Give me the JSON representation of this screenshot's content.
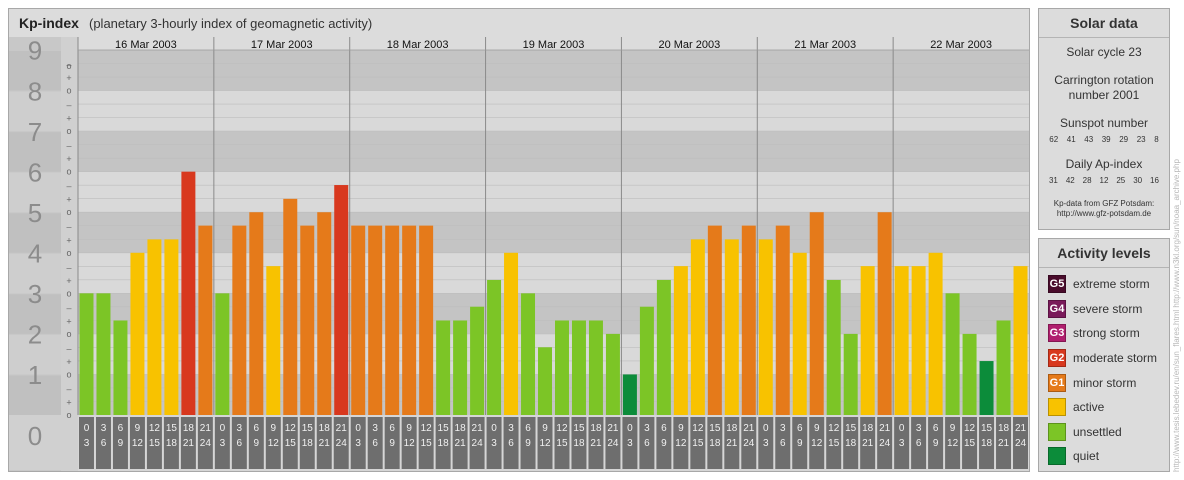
{
  "header": {
    "title": "Kp-index",
    "subtitle": "(planetary 3-hourly index of geomagnetic activity)"
  },
  "chart_data": {
    "type": "bar",
    "title": "Kp-index",
    "subtitle": "(planetary 3-hourly index of geomagnetic activity)",
    "y_range": [
      0,
      9
    ],
    "y_ticks": [
      "0",
      "1",
      "2",
      "3",
      "4",
      "5",
      "6",
      "7",
      "8",
      "9"
    ],
    "minor_ticks": [
      "o",
      "+",
      "–"
    ],
    "days": [
      "16 Mar 2003",
      "17 Mar 2003",
      "18 Mar 2003",
      "19 Mar 2003",
      "20 Mar 2003",
      "21 Mar 2003",
      "22 Mar 2003"
    ],
    "interval_starts": [
      "0",
      "3",
      "6",
      "9",
      "12",
      "15",
      "18",
      "21"
    ],
    "interval_ends": [
      "3",
      "6",
      "9",
      "12",
      "15",
      "18",
      "21",
      "24"
    ],
    "values": [
      [
        3.0,
        3.0,
        2.33,
        4.0,
        4.33,
        4.33,
        6.0,
        4.67
      ],
      [
        3.0,
        4.67,
        5.0,
        3.67,
        5.33,
        4.67,
        5.0,
        5.67
      ],
      [
        4.67,
        4.67,
        4.67,
        4.67,
        4.67,
        2.33,
        2.33,
        2.67
      ],
      [
        3.33,
        4.0,
        3.0,
        1.67,
        2.33,
        2.33,
        2.33,
        2.0
      ],
      [
        1.0,
        2.67,
        3.33,
        3.67,
        4.33,
        4.67,
        4.33,
        4.67
      ],
      [
        4.33,
        4.67,
        4.0,
        5.0,
        3.33,
        2.0,
        3.67,
        5.0
      ],
      [
        3.67,
        3.67,
        4.0,
        3.0,
        2.0,
        1.33,
        2.33,
        3.67
      ]
    ],
    "level_colors": {
      "quiet": "#0c8c3a",
      "unsettled": "#7cc526",
      "active": "#f8c200",
      "G1": "#e57a1a",
      "G2": "#d8381e",
      "G3": "#b01f6e",
      "G4": "#7a1a5a",
      "G5": "#4a0c2c"
    }
  },
  "solar_data": {
    "title": "Solar data",
    "cycle": "Solar cycle 23",
    "carrington_line1": "Carrington rotation",
    "carrington_line2": "number 2001",
    "sunspot_label": "Sunspot number",
    "sunspot_values": [
      "62",
      "41",
      "43",
      "39",
      "29",
      "23",
      "8"
    ],
    "ap_label": "Daily Ap-index",
    "ap_values": [
      "31",
      "42",
      "28",
      "12",
      "25",
      "30",
      "16"
    ],
    "source_line1": "Kp-data from GFZ Potsdam:",
    "source_line2": "http://www.gfz-potsdam.de"
  },
  "activity_levels": {
    "title": "Activity levels",
    "items": [
      {
        "code": "G5",
        "label": "extreme storm",
        "color": "#4a0c2c"
      },
      {
        "code": "G4",
        "label": "severe storm",
        "color": "#7a1a5a"
      },
      {
        "code": "G3",
        "label": "strong storm",
        "color": "#b01f6e"
      },
      {
        "code": "G2",
        "label": "moderate storm",
        "color": "#d8381e"
      },
      {
        "code": "G1",
        "label": "minor storm",
        "color": "#e57a1a"
      },
      {
        "code": "",
        "label": "active",
        "color": "#f8c200"
      },
      {
        "code": "",
        "label": "unsettled",
        "color": "#7cc526"
      },
      {
        "code": "",
        "label": "quiet",
        "color": "#0c8c3a"
      }
    ]
  },
  "watermark": "http://www.tesis.lebedev.ru/en/sun_flares.html http://www.n3kl.org/sun/noaa_archive.php"
}
